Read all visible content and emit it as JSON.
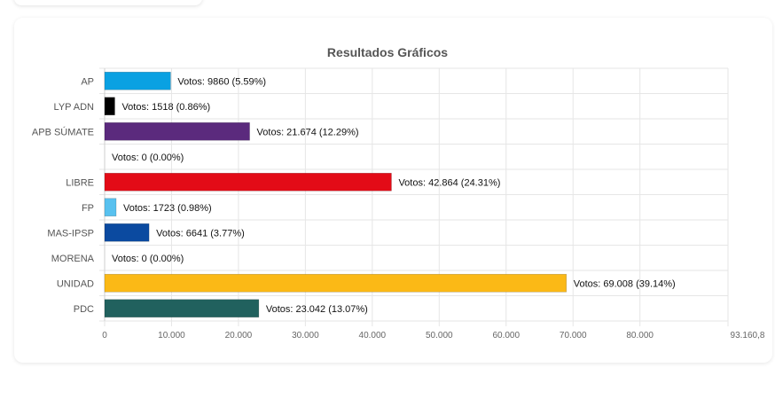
{
  "chart_data": {
    "type": "bar",
    "orientation": "horizontal",
    "title": "Resultados Gráficos",
    "categories": [
      "AP",
      "LYP ADN",
      "APB SÚMATE",
      "",
      "LIBRE",
      "FP",
      "MAS-IPSP",
      "MORENA",
      "UNIDAD",
      "PDC"
    ],
    "values": [
      9860,
      1518,
      21674,
      0,
      42864,
      1723,
      6641,
      0,
      69008,
      23042
    ],
    "data_labels": [
      "Votos: 9860 (5.59%)",
      "Votos: 1518 (0.86%)",
      "Votos: 21.674 (12.29%)",
      "Votos: 0 (0.00%)",
      "Votos: 42.864 (24.31%)",
      "Votos: 1723 (0.98%)",
      "Votos: 6641 (3.77%)",
      "Votos: 0 (0.00%)",
      "Votos: 69.008 (39.14%)",
      "Votos: 23.042 (13.07%)"
    ],
    "colors": [
      "#0aa1e2",
      "#000000",
      "#5b2a7d",
      "#cccccc",
      "#e30b17",
      "#58c1ef",
      "#0b4aa0",
      "#8b1a1a",
      "#fbb916",
      "#21615e"
    ],
    "xlim": [
      0,
      93160.8
    ],
    "xticks": [
      0,
      10000,
      20000,
      30000,
      40000,
      50000,
      60000,
      70000,
      80000,
      93160.8
    ],
    "xtick_labels": [
      "0",
      "10.000",
      "20.000",
      "30.000",
      "40.000",
      "50.000",
      "60.000",
      "70.000",
      "80.000",
      "93.160,8"
    ],
    "grid": true,
    "legend": "none"
  }
}
